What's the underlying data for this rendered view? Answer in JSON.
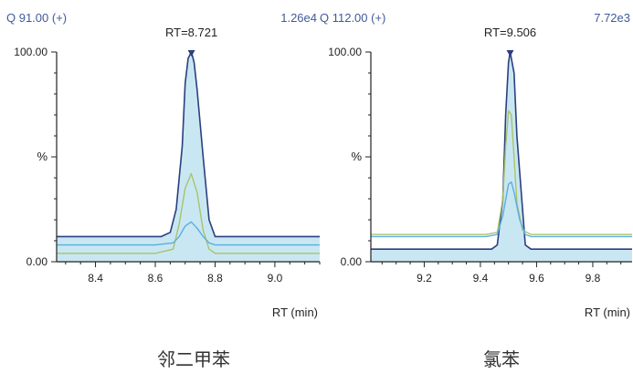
{
  "colors": {
    "header_text": "#3f5a9a",
    "axis": "#222222",
    "trace_main": "#2b3f7f",
    "trace_light": "#5aaee0",
    "trace_green": "#a9c36b",
    "fill": "#bfe3f0"
  },
  "chart_data": [
    {
      "type": "line",
      "header_left": "Q 91.00 (+)",
      "header_right": "1.26e4",
      "peak_label": "RT=8.721",
      "caption": "邻二甲苯",
      "xlabel": "RT (min)",
      "ylabel": "%",
      "ylim": [
        0,
        100
      ],
      "xlim": [
        8.27,
        9.15
      ],
      "x_ticks": [
        "8.4",
        "8.6",
        "8.8",
        "9.0"
      ],
      "y_tick_labels": [
        "100.00",
        "0.00"
      ],
      "peak_rt": 8.721,
      "series": [
        {
          "color_key": "trace_main",
          "fill": true,
          "x": [
            8.27,
            8.45,
            8.62,
            8.65,
            8.67,
            8.69,
            8.7,
            8.71,
            8.721,
            8.73,
            8.74,
            8.76,
            8.78,
            8.8,
            9.15
          ],
          "y": [
            12,
            12,
            12,
            14,
            25,
            55,
            85,
            97,
            100,
            95,
            82,
            50,
            20,
            12,
            12
          ]
        },
        {
          "color_key": "trace_green",
          "fill": false,
          "x": [
            8.27,
            8.6,
            8.66,
            8.68,
            8.7,
            8.72,
            8.74,
            8.76,
            8.78,
            8.8,
            9.15
          ],
          "y": [
            4,
            4,
            6,
            18,
            35,
            42,
            33,
            15,
            6,
            4,
            4
          ]
        },
        {
          "color_key": "trace_light",
          "fill": false,
          "x": [
            8.27,
            8.6,
            8.66,
            8.68,
            8.7,
            8.72,
            8.74,
            8.76,
            8.78,
            8.8,
            9.15
          ],
          "y": [
            8,
            8,
            9,
            12,
            17,
            19,
            16,
            12,
            9,
            8,
            8
          ]
        }
      ]
    },
    {
      "type": "line",
      "header_left": "Q 112.00 (+)",
      "header_right": "7.72e3",
      "peak_label": "RT=9.506",
      "caption": "氯苯",
      "xlabel": "RT (min)",
      "ylabel": "%",
      "ylim": [
        0,
        100
      ],
      "xlim": [
        9.01,
        9.94
      ],
      "x_ticks": [
        "9.2",
        "9.4",
        "9.6",
        "9.8"
      ],
      "y_tick_labels": [
        "100.00",
        "0.00"
      ],
      "peak_rt": 9.506,
      "series": [
        {
          "color_key": "trace_main",
          "fill": true,
          "x": [
            9.01,
            9.2,
            9.44,
            9.46,
            9.48,
            9.49,
            9.5,
            9.506,
            9.52,
            9.53,
            9.55,
            9.56,
            9.58,
            9.94
          ],
          "y": [
            6,
            6,
            6,
            8,
            30,
            70,
            95,
            100,
            90,
            60,
            25,
            8,
            6,
            6
          ]
        },
        {
          "color_key": "trace_green",
          "fill": false,
          "x": [
            9.01,
            9.42,
            9.46,
            9.48,
            9.49,
            9.5,
            9.51,
            9.52,
            9.53,
            9.55,
            9.58,
            9.94
          ],
          "y": [
            13,
            13,
            14,
            30,
            55,
            72,
            70,
            50,
            28,
            15,
            13,
            13
          ]
        },
        {
          "color_key": "trace_light",
          "fill": false,
          "x": [
            9.01,
            9.42,
            9.46,
            9.48,
            9.5,
            9.51,
            9.52,
            9.54,
            9.56,
            9.58,
            9.94
          ],
          "y": [
            12,
            12,
            13,
            22,
            37,
            38,
            33,
            20,
            13,
            12,
            12
          ]
        }
      ]
    }
  ]
}
